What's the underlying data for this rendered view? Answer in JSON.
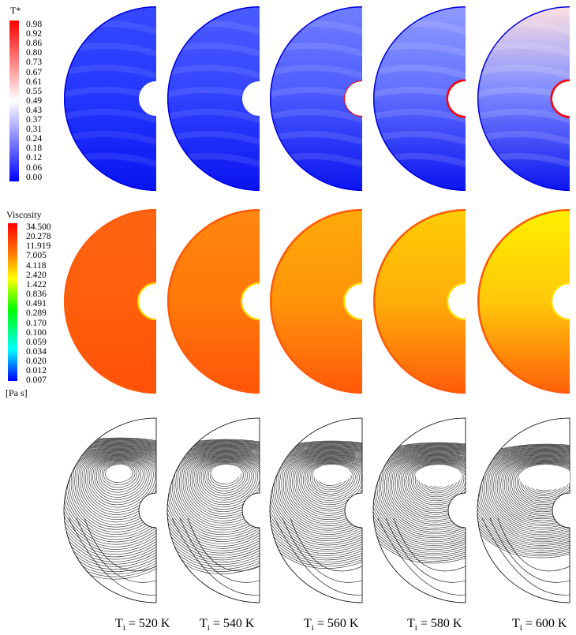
{
  "temperature_legend": {
    "title": "T*",
    "ticks": [
      "0.98",
      "0.92",
      "0.86",
      "0.80",
      "0.73",
      "0.67",
      "0.61",
      "0.55",
      "0.49",
      "0.43",
      "0.37",
      "0.31",
      "0.24",
      "0.18",
      "0.12",
      "0.06",
      "0.00"
    ],
    "colors": {
      "high": "#ff0000",
      "mid": "#ffffff",
      "low": "#0000ff"
    }
  },
  "viscosity_legend": {
    "title": "Viscosity",
    "unit": "[Pa s]",
    "ticks": [
      "34.500",
      "20.278",
      "11.919",
      "7.005",
      "4.118",
      "2.420",
      "1.422",
      "0.836",
      "0.491",
      "0.289",
      "0.170",
      "0.100",
      "0.059",
      "0.034",
      "0.020",
      "0.012",
      "0.007"
    ],
    "colors": [
      "#ff0000",
      "#ff8000",
      "#ffff00",
      "#00ff00",
      "#00ffff",
      "#0000ff"
    ]
  },
  "cases": [
    {
      "caption_main": "T",
      "caption_sub": "i",
      "caption_rest": " = 520 K",
      "temperature_level": 0.12,
      "viscosity_level": 0.0
    },
    {
      "caption_main": "T",
      "caption_sub": "i",
      "caption_rest": " = 540 K",
      "temperature_level": 0.22,
      "viscosity_level": 0.25
    },
    {
      "caption_main": "T",
      "caption_sub": "i",
      "caption_rest": " = 560 K",
      "temperature_level": 0.4,
      "viscosity_level": 0.5
    },
    {
      "caption_main": "T",
      "caption_sub": "i",
      "caption_rest": " = 580 K",
      "temperature_level": 0.55,
      "viscosity_level": 0.75
    },
    {
      "caption_main": "T",
      "caption_sub": "i",
      "caption_rest": " = 600 K",
      "temperature_level": 0.75,
      "viscosity_level": 1.0
    }
  ]
}
